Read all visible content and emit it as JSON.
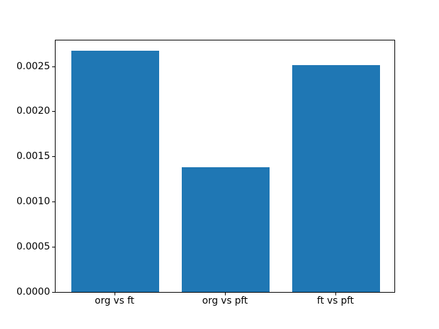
{
  "chart_data": {
    "type": "bar",
    "title": "",
    "xlabel": "",
    "ylabel": "",
    "categories": [
      "org vs ft",
      "org vs pft",
      "ft vs pft"
    ],
    "values": [
      0.00267,
      0.00138,
      0.00251
    ],
    "bar_color": "#1f77b4",
    "ylim": [
      0,
      0.0028
    ],
    "ytick_values": [
      0.0,
      0.0005,
      0.001,
      0.0015,
      0.002,
      0.0025
    ],
    "ytick_labels": [
      "0.0000",
      "0.0005",
      "0.0010",
      "0.0015",
      "0.0020",
      "0.0025"
    ],
    "grid": false,
    "legend": "none",
    "spine_color": "#000000",
    "background_color": "#ffffff"
  }
}
